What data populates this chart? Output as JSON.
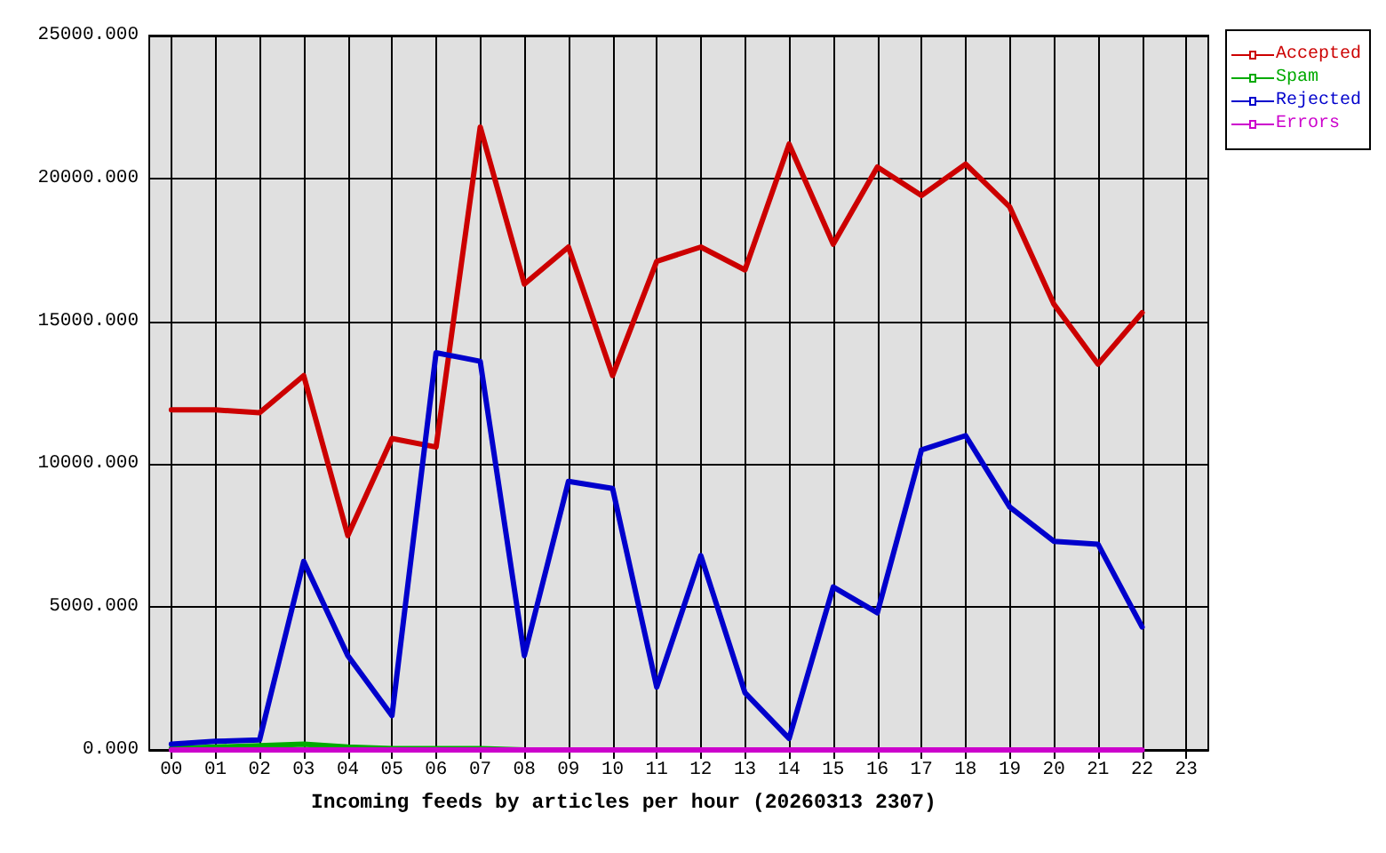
{
  "chart_data": {
    "type": "line",
    "title": "Incoming feeds by articles per hour (20260313 2307)",
    "categories": [
      "00",
      "01",
      "02",
      "03",
      "04",
      "05",
      "06",
      "07",
      "08",
      "09",
      "10",
      "11",
      "12",
      "13",
      "14",
      "15",
      "16",
      "17",
      "18",
      "19",
      "20",
      "21",
      "22",
      "23"
    ],
    "series": [
      {
        "name": "Accepted",
        "color": "#cc0000",
        "values": [
          11900,
          11900,
          11800,
          13100,
          7500,
          10900,
          10600,
          21800,
          16300,
          17600,
          13100,
          17100,
          17600,
          16800,
          21200,
          17700,
          20400,
          19400,
          20500,
          19000,
          15600,
          13500,
          15300,
          null
        ]
      },
      {
        "name": "Spam",
        "color": "#00aa00",
        "values": [
          50,
          100,
          150,
          200,
          100,
          50,
          50,
          50,
          0,
          null,
          null,
          null,
          null,
          null,
          null,
          null,
          null,
          null,
          null,
          null,
          null,
          null,
          null,
          null
        ]
      },
      {
        "name": "Rejected",
        "color": "#0000cc",
        "values": [
          200,
          300,
          350,
          6600,
          3300,
          1200,
          13900,
          13600,
          3300,
          9400,
          9150,
          2200,
          6800,
          2000,
          400,
          5700,
          4800,
          10500,
          11000,
          8500,
          7300,
          7200,
          4300,
          null
        ]
      },
      {
        "name": "Errors",
        "color": "#cc00cc",
        "values": [
          0,
          0,
          0,
          0,
          0,
          0,
          0,
          0,
          0,
          0,
          0,
          0,
          0,
          0,
          0,
          0,
          0,
          0,
          0,
          0,
          0,
          0,
          0,
          null
        ]
      }
    ],
    "ylim": [
      0,
      25000
    ],
    "yticks": [
      {
        "value": 0,
        "label": "0.000"
      },
      {
        "value": 5000,
        "label": "5000.000"
      },
      {
        "value": 10000,
        "label": "10000.000"
      },
      {
        "value": 15000,
        "label": "15000.000"
      },
      {
        "value": 20000,
        "label": "20000.000"
      },
      {
        "value": 25000,
        "label": "25000.000"
      }
    ],
    "grid": true,
    "legend": "top right",
    "marker": "none",
    "line_style": "solid"
  }
}
